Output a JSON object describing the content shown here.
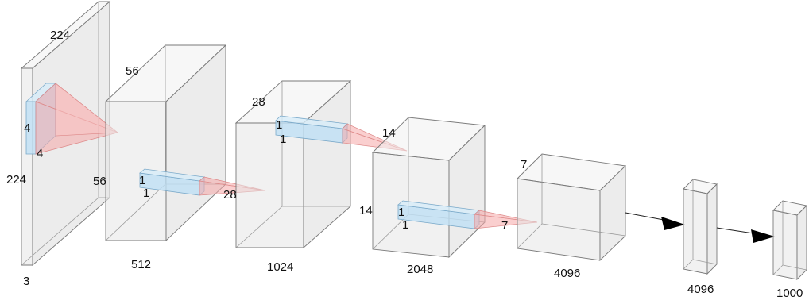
{
  "input": {
    "width": "224",
    "height": "224",
    "channels": "3",
    "kernel_h": "4",
    "kernel_w": "4"
  },
  "conv1": {
    "spatial_top": "56",
    "spatial_side": "56",
    "channels": "512",
    "kernel_h": "1",
    "kernel_w": "1",
    "next_spatial": "28"
  },
  "conv2": {
    "spatial_top": "28",
    "channels": "1024",
    "kernel_h": "1",
    "kernel_w": "1",
    "next_spatial": "14"
  },
  "conv3": {
    "spatial_side": "14",
    "channels": "2048",
    "kernel_h": "1",
    "kernel_w": "1",
    "next_spatial": "7"
  },
  "conv4": {
    "spatial_top": "7",
    "channels": "4096"
  },
  "fc1": {
    "units": "4096"
  },
  "fc2": {
    "units": "1000"
  }
}
